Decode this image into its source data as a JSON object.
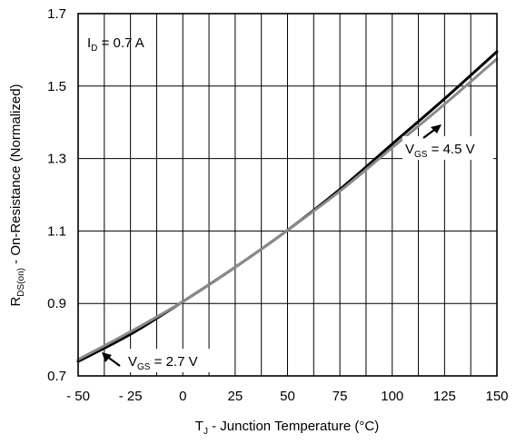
{
  "chart_data": {
    "type": "line",
    "xlabel": {
      "main": "T",
      "sub": "J",
      "rest": " - Junction Temperature (°C)"
    },
    "ylabel": {
      "main": "R",
      "sub": "DS(on)",
      "rest": " - On-Resistance  (Normalized)"
    },
    "xlim": [
      -50,
      150
    ],
    "ylim": [
      0.7,
      1.7
    ],
    "xticks": [
      -50,
      -25,
      0,
      25,
      50,
      75,
      100,
      125,
      150
    ],
    "xtick_labels": [
      "- 50",
      "- 25",
      "0",
      "25",
      "50",
      "75",
      "100",
      "125",
      "150"
    ],
    "yticks": [
      0.7,
      0.9,
      1.1,
      1.3,
      1.5,
      1.7
    ],
    "ytick_labels": [
      "0.7",
      "0.9",
      "1.1",
      "1.3",
      "1.5",
      "1.7"
    ],
    "xgrid": [
      -50,
      -37.5,
      -25,
      -12.5,
      0,
      12.5,
      25,
      37.5,
      50,
      62.5,
      75,
      87.5,
      100,
      112.5,
      125,
      137.5,
      150
    ],
    "ygrid": [
      0.7,
      0.9,
      1.1,
      1.3,
      1.5,
      1.7
    ],
    "grid": true,
    "condition": {
      "main": "I",
      "sub": "D",
      "rest": " = 0.7 A"
    },
    "series": [
      {
        "label": {
          "main": "V",
          "sub": "GS",
          "rest": " = 4.5 V"
        },
        "color": "#000000",
        "x": [
          -50,
          -25,
          0,
          25,
          50,
          75,
          100,
          125,
          150
        ],
        "y": [
          0.74,
          0.815,
          0.905,
          1.0,
          1.102,
          1.215,
          1.34,
          1.465,
          1.595
        ]
      },
      {
        "label": {
          "main": "V",
          "sub": "GS",
          "rest": " = 2.7 V"
        },
        "color": "#8a8a8a",
        "x": [
          -50,
          -25,
          0,
          25,
          50,
          75,
          100,
          125,
          150
        ],
        "y": [
          0.745,
          0.822,
          0.905,
          1.0,
          1.102,
          1.21,
          1.33,
          1.45,
          1.575
        ]
      }
    ]
  }
}
